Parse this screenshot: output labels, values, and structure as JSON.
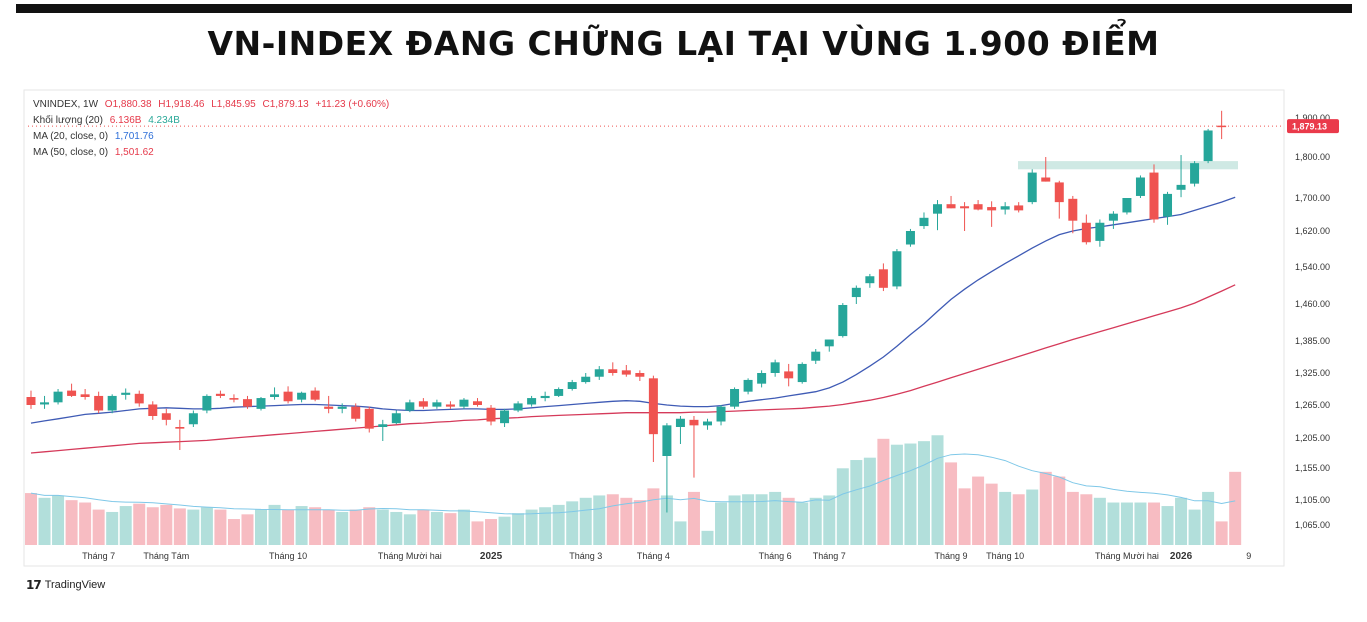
{
  "headline": "VN-INDEX ĐANG CHỮNG LẠI TẠI VÙNG 1.900 ĐIỂM",
  "legend": {
    "symbol": "VNINDEX, 1W",
    "open": "O1,880.38",
    "high": "H1,918.46",
    "low": "L1,845.95",
    "close": "C1,879.13",
    "change": "+11.23 (+0.60%)",
    "volume_label": "Khối lượng (20)",
    "volume_value": "6.136B",
    "volume_ma": "4.234B",
    "ma20_label": "MA (20, close, 0)",
    "ma20_value": "1,701.76",
    "ma50_label": "MA (50, close, 0)",
    "ma50_value": "1,501.62"
  },
  "brand": {
    "logo": "17",
    "name": "TradingView"
  },
  "colors": {
    "up": "#26a69a",
    "down": "#ef5350",
    "up_volume": "#b2dfdb",
    "down_volume": "#f7bcc2",
    "ma20": "#3f5bb5",
    "ma50": "#d53a5a",
    "vol_ma": "#7fc8e8",
    "zone": "#cfe9e4"
  },
  "chart_data": {
    "type": "candlestick",
    "title": "VN-INDEX ĐANG CHỮNG LẠI TẠI VÙNG 1.900 ĐIỂM",
    "interval": "1W",
    "y_ticks": [
      {
        "label": "1,900.00",
        "value": 1900
      },
      {
        "label": "1,800.00",
        "value": 1800
      },
      {
        "label": "1,700.00",
        "value": 1700
      },
      {
        "label": "1,620.00",
        "value": 1620
      },
      {
        "label": "1,540.00",
        "value": 1540
      },
      {
        "label": "1,460.00",
        "value": 1460
      },
      {
        "label": "1,385.00",
        "value": 1385
      },
      {
        "label": "1,325.00",
        "value": 1325
      },
      {
        "label": "1,265.00",
        "value": 1265
      },
      {
        "label": "1,205.00",
        "value": 1205
      },
      {
        "label": "1,155.00",
        "value": 1155
      },
      {
        "label": "1,105.00",
        "value": 1105
      },
      {
        "label": "1,065.00",
        "value": 1065
      }
    ],
    "last_price": {
      "label": "1,879.13",
      "value": 1879.13
    },
    "resistance_zone": [
      1770,
      1790
    ],
    "x_ticks": [
      {
        "label": "Tháng 7",
        "index": 5
      },
      {
        "label": "Tháng Tám",
        "index": 10
      },
      {
        "label": "Tháng 10",
        "index": 19
      },
      {
        "label": "Tháng Mười hai",
        "index": 28
      },
      {
        "label": "2025",
        "index": 34
      },
      {
        "label": "Tháng 3",
        "index": 41
      },
      {
        "label": "Tháng 4",
        "index": 46
      },
      {
        "label": "Tháng 6",
        "index": 55
      },
      {
        "label": "Tháng 7",
        "index": 59
      },
      {
        "label": "Tháng 9",
        "index": 68
      },
      {
        "label": "Tháng 10",
        "index": 72
      },
      {
        "label": "Tháng Mười hai",
        "index": 81
      },
      {
        "label": "2026",
        "index": 85
      },
      {
        "label": "9",
        "index": 90
      }
    ],
    "candles": [
      {
        "o": 1280,
        "h": 1292,
        "l": 1258,
        "c": 1265
      },
      {
        "o": 1266,
        "h": 1282,
        "l": 1258,
        "c": 1270
      },
      {
        "o": 1270,
        "h": 1295,
        "l": 1266,
        "c": 1290
      },
      {
        "o": 1292,
        "h": 1305,
        "l": 1280,
        "c": 1282
      },
      {
        "o": 1285,
        "h": 1295,
        "l": 1275,
        "c": 1280
      },
      {
        "o": 1282,
        "h": 1290,
        "l": 1250,
        "c": 1255
      },
      {
        "o": 1255,
        "h": 1285,
        "l": 1250,
        "c": 1282
      },
      {
        "o": 1284,
        "h": 1296,
        "l": 1275,
        "c": 1288
      },
      {
        "o": 1286,
        "h": 1292,
        "l": 1262,
        "c": 1268
      },
      {
        "o": 1266,
        "h": 1272,
        "l": 1238,
        "c": 1245
      },
      {
        "o": 1250,
        "h": 1258,
        "l": 1228,
        "c": 1238
      },
      {
        "o": 1225,
        "h": 1238,
        "l": 1185,
        "c": 1222
      },
      {
        "o": 1230,
        "h": 1255,
        "l": 1225,
        "c": 1250
      },
      {
        "o": 1255,
        "h": 1285,
        "l": 1250,
        "c": 1282
      },
      {
        "o": 1286,
        "h": 1292,
        "l": 1278,
        "c": 1282
      },
      {
        "o": 1278,
        "h": 1285,
        "l": 1270,
        "c": 1275
      },
      {
        "o": 1276,
        "h": 1282,
        "l": 1258,
        "c": 1262
      },
      {
        "o": 1258,
        "h": 1280,
        "l": 1255,
        "c": 1278
      },
      {
        "o": 1280,
        "h": 1298,
        "l": 1275,
        "c": 1285
      },
      {
        "o": 1290,
        "h": 1300,
        "l": 1268,
        "c": 1272
      },
      {
        "o": 1275,
        "h": 1290,
        "l": 1270,
        "c": 1288
      },
      {
        "o": 1292,
        "h": 1298,
        "l": 1272,
        "c": 1275
      },
      {
        "o": 1262,
        "h": 1282,
        "l": 1250,
        "c": 1258
      },
      {
        "o": 1258,
        "h": 1268,
        "l": 1250,
        "c": 1262
      },
      {
        "o": 1262,
        "h": 1268,
        "l": 1235,
        "c": 1240
      },
      {
        "o": 1258,
        "h": 1262,
        "l": 1215,
        "c": 1222
      },
      {
        "o": 1225,
        "h": 1238,
        "l": 1200,
        "c": 1230
      },
      {
        "o": 1232,
        "h": 1255,
        "l": 1230,
        "c": 1250
      },
      {
        "o": 1255,
        "h": 1275,
        "l": 1252,
        "c": 1270
      },
      {
        "o": 1272,
        "h": 1278,
        "l": 1258,
        "c": 1262
      },
      {
        "o": 1262,
        "h": 1275,
        "l": 1258,
        "c": 1270
      },
      {
        "o": 1266,
        "h": 1272,
        "l": 1258,
        "c": 1262
      },
      {
        "o": 1262,
        "h": 1278,
        "l": 1258,
        "c": 1275
      },
      {
        "o": 1272,
        "h": 1278,
        "l": 1262,
        "c": 1265
      },
      {
        "o": 1260,
        "h": 1265,
        "l": 1228,
        "c": 1235
      },
      {
        "o": 1232,
        "h": 1258,
        "l": 1225,
        "c": 1255
      },
      {
        "o": 1255,
        "h": 1272,
        "l": 1252,
        "c": 1268
      },
      {
        "o": 1266,
        "h": 1282,
        "l": 1262,
        "c": 1278
      },
      {
        "o": 1278,
        "h": 1290,
        "l": 1272,
        "c": 1282
      },
      {
        "o": 1282,
        "h": 1298,
        "l": 1280,
        "c": 1295
      },
      {
        "o": 1295,
        "h": 1312,
        "l": 1292,
        "c": 1308
      },
      {
        "o": 1308,
        "h": 1325,
        "l": 1305,
        "c": 1318
      },
      {
        "o": 1318,
        "h": 1338,
        "l": 1312,
        "c": 1332
      },
      {
        "o": 1332,
        "h": 1345,
        "l": 1320,
        "c": 1325
      },
      {
        "o": 1330,
        "h": 1340,
        "l": 1318,
        "c": 1322
      },
      {
        "o": 1325,
        "h": 1330,
        "l": 1310,
        "c": 1318
      },
      {
        "o": 1315,
        "h": 1320,
        "l": 1165,
        "c": 1212
      },
      {
        "o": 1175,
        "h": 1232,
        "l": 1085,
        "c": 1228
      },
      {
        "o": 1225,
        "h": 1245,
        "l": 1195,
        "c": 1240
      },
      {
        "o": 1238,
        "h": 1245,
        "l": 1140,
        "c": 1228
      },
      {
        "o": 1228,
        "h": 1240,
        "l": 1220,
        "c": 1235
      },
      {
        "o": 1235,
        "h": 1265,
        "l": 1228,
        "c": 1262
      },
      {
        "o": 1262,
        "h": 1298,
        "l": 1258,
        "c": 1295
      },
      {
        "o": 1290,
        "h": 1315,
        "l": 1285,
        "c": 1312
      },
      {
        "o": 1305,
        "h": 1330,
        "l": 1298,
        "c": 1325
      },
      {
        "o": 1325,
        "h": 1350,
        "l": 1318,
        "c": 1345
      },
      {
        "o": 1328,
        "h": 1342,
        "l": 1300,
        "c": 1315
      },
      {
        "o": 1308,
        "h": 1345,
        "l": 1305,
        "c": 1342
      },
      {
        "o": 1348,
        "h": 1370,
        "l": 1342,
        "c": 1365
      },
      {
        "o": 1375,
        "h": 1388,
        "l": 1365,
        "c": 1388
      },
      {
        "o": 1395,
        "h": 1462,
        "l": 1392,
        "c": 1458
      },
      {
        "o": 1475,
        "h": 1500,
        "l": 1460,
        "c": 1495
      },
      {
        "o": 1505,
        "h": 1525,
        "l": 1495,
        "c": 1520
      },
      {
        "o": 1535,
        "h": 1548,
        "l": 1488,
        "c": 1495
      },
      {
        "o": 1498,
        "h": 1580,
        "l": 1492,
        "c": 1575
      },
      {
        "o": 1590,
        "h": 1625,
        "l": 1585,
        "c": 1620
      },
      {
        "o": 1632,
        "h": 1665,
        "l": 1625,
        "c": 1652
      },
      {
        "o": 1662,
        "h": 1695,
        "l": 1622,
        "c": 1685
      },
      {
        "o": 1685,
        "h": 1705,
        "l": 1675,
        "c": 1675
      },
      {
        "o": 1680,
        "h": 1690,
        "l": 1620,
        "c": 1675
      },
      {
        "o": 1685,
        "h": 1695,
        "l": 1670,
        "c": 1672
      },
      {
        "o": 1678,
        "h": 1692,
        "l": 1630,
        "c": 1670
      },
      {
        "o": 1672,
        "h": 1690,
        "l": 1660,
        "c": 1680
      },
      {
        "o": 1682,
        "h": 1690,
        "l": 1665,
        "c": 1670
      },
      {
        "o": 1690,
        "h": 1770,
        "l": 1685,
        "c": 1762
      },
      {
        "o": 1750,
        "h": 1800,
        "l": 1740,
        "c": 1740
      },
      {
        "o": 1738,
        "h": 1742,
        "l": 1650,
        "c": 1690
      },
      {
        "o": 1698,
        "h": 1705,
        "l": 1615,
        "c": 1645
      },
      {
        "o": 1640,
        "h": 1660,
        "l": 1590,
        "c": 1595
      },
      {
        "o": 1598,
        "h": 1648,
        "l": 1585,
        "c": 1640
      },
      {
        "o": 1645,
        "h": 1668,
        "l": 1625,
        "c": 1662
      },
      {
        "o": 1665,
        "h": 1700,
        "l": 1660,
        "c": 1700
      },
      {
        "o": 1705,
        "h": 1755,
        "l": 1700,
        "c": 1750
      },
      {
        "o": 1762,
        "h": 1782,
        "l": 1640,
        "c": 1648
      },
      {
        "o": 1655,
        "h": 1715,
        "l": 1635,
        "c": 1710
      },
      {
        "o": 1720,
        "h": 1805,
        "l": 1702,
        "c": 1732
      },
      {
        "o": 1735,
        "h": 1790,
        "l": 1728,
        "c": 1785
      },
      {
        "o": 1790,
        "h": 1872,
        "l": 1785,
        "c": 1868
      },
      {
        "o": 1880.38,
        "h": 1918.46,
        "l": 1845.95,
        "c": 1879.13
      }
    ],
    "volume_rel": [
      0.44,
      0.4,
      0.42,
      0.38,
      0.36,
      0.3,
      0.28,
      0.33,
      0.35,
      0.32,
      0.34,
      0.31,
      0.3,
      0.32,
      0.3,
      0.22,
      0.26,
      0.3,
      0.34,
      0.3,
      0.33,
      0.32,
      0.3,
      0.28,
      0.3,
      0.32,
      0.3,
      0.28,
      0.26,
      0.3,
      0.28,
      0.27,
      0.3,
      0.2,
      0.22,
      0.24,
      0.27,
      0.3,
      0.32,
      0.34,
      0.37,
      0.4,
      0.42,
      0.43,
      0.4,
      0.38,
      0.48,
      0.42,
      0.2,
      0.45,
      0.12,
      0.36,
      0.42,
      0.43,
      0.43,
      0.45,
      0.4,
      0.36,
      0.4,
      0.42,
      0.65,
      0.72,
      0.74,
      0.9,
      0.85,
      0.86,
      0.88,
      0.93,
      0.7,
      0.48,
      0.58,
      0.52,
      0.45,
      0.43,
      0.47,
      0.62,
      0.58,
      0.45,
      0.43,
      0.4,
      0.36,
      0.36,
      0.36,
      0.36,
      0.33,
      0.4,
      0.3,
      0.45,
      0.2,
      0.62
    ],
    "ma20": [
      1232,
      1236,
      1240,
      1244,
      1248,
      1250,
      1252,
      1255,
      1258,
      1259,
      1260,
      1259,
      1258,
      1258,
      1259,
      1261,
      1262,
      1263,
      1264,
      1265,
      1266,
      1266,
      1265,
      1264,
      1263,
      1261,
      1258,
      1256,
      1255,
      1255,
      1256,
      1257,
      1258,
      1258,
      1257,
      1257,
      1258,
      1260,
      1262,
      1264,
      1266,
      1268,
      1270,
      1272,
      1273,
      1272,
      1268,
      1265,
      1263,
      1262,
      1262,
      1264,
      1268,
      1272,
      1275,
      1278,
      1282,
      1286,
      1290,
      1297,
      1308,
      1322,
      1338,
      1355,
      1375,
      1398,
      1420,
      1445,
      1470,
      1492,
      1512,
      1530,
      1548,
      1565,
      1582,
      1598,
      1612,
      1620,
      1626,
      1630,
      1635,
      1640,
      1645,
      1650,
      1655,
      1660,
      1670,
      1680,
      1690,
      1701.76
    ],
    "ma50": [
      1180,
      1182,
      1184,
      1186,
      1188,
      1190,
      1192,
      1194,
      1196,
      1197,
      1198,
      1199,
      1200,
      1201,
      1203,
      1205,
      1207,
      1209,
      1211,
      1213,
      1215,
      1217,
      1219,
      1221,
      1223,
      1225,
      1227,
      1229,
      1231,
      1232,
      1234,
      1235,
      1237,
      1238,
      1240,
      1241,
      1242,
      1244,
      1245,
      1246,
      1247,
      1248,
      1249,
      1250,
      1251,
      1251,
      1251,
      1251,
      1251,
      1252,
      1252,
      1253,
      1254,
      1255,
      1256,
      1257,
      1258,
      1259,
      1261,
      1263,
      1266,
      1270,
      1274,
      1279,
      1285,
      1292,
      1300,
      1308,
      1316,
      1324,
      1332,
      1340,
      1348,
      1356,
      1364,
      1372,
      1380,
      1388,
      1396,
      1404,
      1412,
      1420,
      1428,
      1436,
      1444,
      1452,
      1462,
      1475,
      1488,
      1501.62
    ]
  }
}
